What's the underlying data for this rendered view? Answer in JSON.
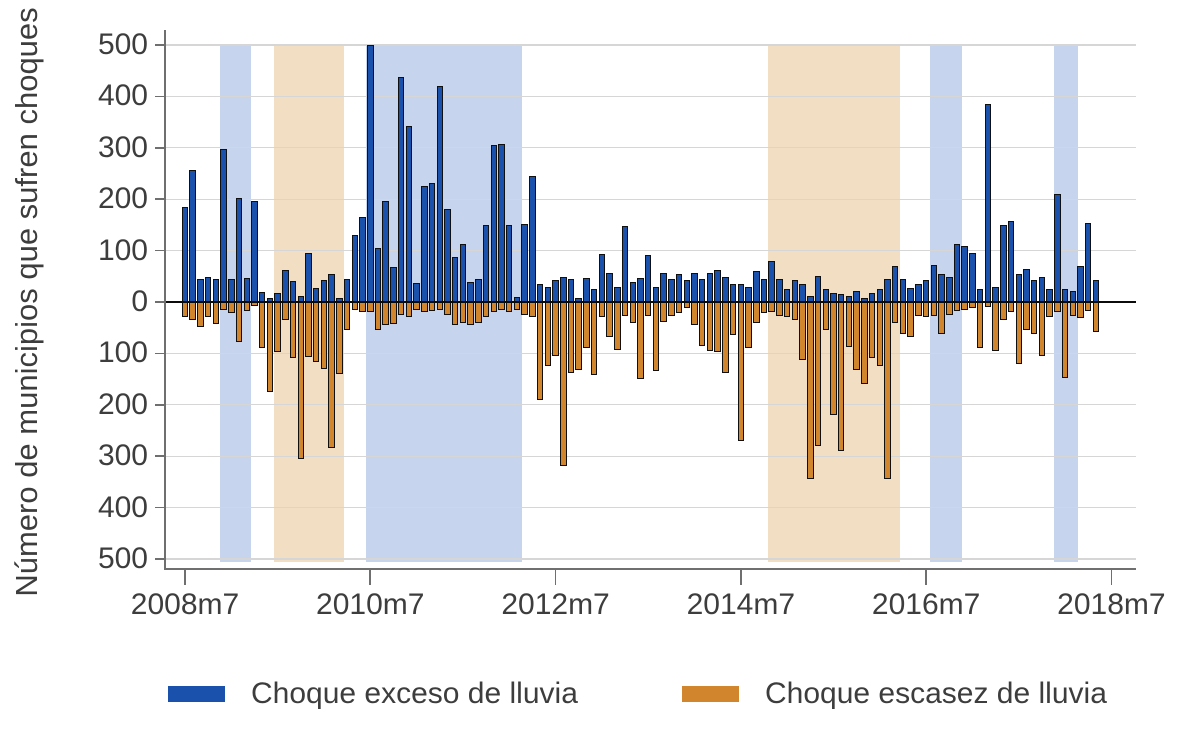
{
  "legend": {
    "items": [
      {
        "label": "Choque exceso de lluvia",
        "color": "#1a51ad"
      },
      {
        "label": "Choque escasez de lluvia",
        "color": "#d1862e"
      }
    ]
  },
  "colors": {
    "excess_bar": "#1a51ad",
    "deficit_bar": "#d1862e",
    "bar_outline": "#101010",
    "wet_band": "#c7d4ee",
    "dry_band": "#f2dfc3",
    "gridline": "#d6d6d6",
    "axis": "#6f6f6f",
    "zero_line": "#0b0b0b",
    "text": "#3d3d3d",
    "background": "#ffffff"
  },
  "chart_data": {
    "type": "bar",
    "title": "",
    "xlabel": "",
    "ylabel": "Número de municipios que sufren choques",
    "ylim": [
      -500,
      500
    ],
    "y_tick_interval": 100,
    "y_tick_labels_absolute": true,
    "grid": true,
    "legend_position": "bottom",
    "categories": [
      "2008m7",
      "2008m8",
      "2008m9",
      "2008m10",
      "2008m11",
      "2008m12",
      "2009m1",
      "2009m2",
      "2009m3",
      "2009m4",
      "2009m5",
      "2009m6",
      "2009m7",
      "2009m8",
      "2009m9",
      "2009m10",
      "2009m11",
      "2009m12",
      "2010m1",
      "2010m2",
      "2010m3",
      "2010m4",
      "2010m5",
      "2010m6",
      "2010m7",
      "2010m8",
      "2010m9",
      "2010m10",
      "2010m11",
      "2010m12",
      "2011m1",
      "2011m2",
      "2011m3",
      "2011m4",
      "2011m5",
      "2011m6",
      "2011m7",
      "2011m8",
      "2011m9",
      "2011m10",
      "2011m11",
      "2011m12",
      "2012m1",
      "2012m2",
      "2012m3",
      "2012m4",
      "2012m5",
      "2012m6",
      "2012m7",
      "2012m8",
      "2012m9",
      "2012m10",
      "2012m11",
      "2012m12",
      "2013m1",
      "2013m2",
      "2013m3",
      "2013m4",
      "2013m5",
      "2013m6",
      "2013m7",
      "2013m8",
      "2013m9",
      "2013m10",
      "2013m11",
      "2013m12",
      "2014m1",
      "2014m2",
      "2014m3",
      "2014m4",
      "2014m5",
      "2014m6",
      "2014m7",
      "2014m8",
      "2014m9",
      "2014m10",
      "2014m11",
      "2014m12",
      "2015m1",
      "2015m2",
      "2015m3",
      "2015m4",
      "2015m5",
      "2015m6",
      "2015m7",
      "2015m8",
      "2015m9",
      "2015m10",
      "2015m11",
      "2015m12",
      "2016m1",
      "2016m2",
      "2016m3",
      "2016m4",
      "2016m5",
      "2016m6",
      "2016m7",
      "2016m8",
      "2016m9",
      "2016m10",
      "2016m11",
      "2016m12",
      "2017m1",
      "2017m2",
      "2017m3",
      "2017m4",
      "2017m5",
      "2017m6",
      "2017m7",
      "2017m8",
      "2017m9",
      "2017m10",
      "2017m11",
      "2017m12",
      "2018m1",
      "2018m2",
      "2018m3",
      "2018m4",
      "2018m5"
    ],
    "series": [
      {
        "name": "Choque exceso de lluvia",
        "color": "#1a51ad",
        "values": [
          185,
          257,
          44,
          48,
          45,
          297,
          44,
          202,
          47,
          196,
          20,
          8,
          18,
          63,
          40,
          12,
          95,
          28,
          42,
          55,
          8,
          45,
          130,
          165,
          500,
          105,
          196,
          68,
          437,
          343,
          37,
          225,
          232,
          420,
          180,
          88,
          112,
          38,
          45,
          150,
          305,
          308,
          150,
          10,
          152,
          245,
          35,
          30,
          42,
          48,
          44,
          8,
          46,
          25,
          93,
          57,
          30,
          148,
          38,
          47,
          92,
          30,
          57,
          45,
          55,
          42,
          57,
          45,
          57,
          62,
          48,
          35,
          35,
          30,
          60,
          45,
          80,
          45,
          25,
          42,
          35,
          12,
          50,
          25,
          18,
          15,
          12,
          22,
          8,
          18,
          25,
          45,
          70,
          45,
          28,
          35,
          42,
          72,
          55,
          48,
          112,
          108,
          95,
          25,
          385,
          30,
          150,
          158,
          55,
          65,
          42,
          48,
          25,
          210,
          25,
          22,
          70,
          153,
          43
        ]
      },
      {
        "name": "Choque escasez de lluvia",
        "color": "#d1862e",
        "values": [
          -30,
          -35,
          -48,
          -30,
          -42,
          -15,
          -22,
          -77,
          -18,
          -8,
          -90,
          -175,
          -98,
          -35,
          -109,
          -305,
          -107,
          -117,
          -131,
          -284,
          -140,
          -55,
          -15,
          -20,
          -20,
          -55,
          -45,
          -42,
          -25,
          -30,
          -15,
          -20,
          -18,
          -15,
          -25,
          -45,
          -40,
          -45,
          -40,
          -30,
          -20,
          -15,
          -20,
          -15,
          -25,
          -30,
          -190,
          -125,
          -105,
          -320,
          -138,
          -132,
          -90,
          -142,
          -30,
          -68,
          -93,
          -28,
          -40,
          -150,
          -28,
          -135,
          -38,
          -28,
          -22,
          -12,
          -45,
          -85,
          -95,
          -98,
          -138,
          -65,
          -270,
          -90,
          -40,
          -22,
          -20,
          -28,
          -30,
          -35,
          -113,
          -345,
          -280,
          -54,
          -220,
          -290,
          -88,
          -132,
          -160,
          -108,
          -125,
          -345,
          -40,
          -62,
          -68,
          -28,
          -30,
          -28,
          -62,
          -25,
          -18,
          -15,
          -12,
          -90,
          -10,
          -95,
          -35,
          -20,
          -120,
          -55,
          -62,
          -105,
          -30,
          -20,
          -148,
          -28,
          -32,
          -17,
          -59
        ]
      }
    ],
    "x_ticks": [
      {
        "index": 0,
        "label": "2008m7"
      },
      {
        "index": 24,
        "label": "2010m7"
      },
      {
        "index": 48,
        "label": "2012m7"
      },
      {
        "index": 72,
        "label": "2014m7"
      },
      {
        "index": 96,
        "label": "2016m7"
      },
      {
        "index": 120,
        "label": "2018m7"
      }
    ],
    "shaded_bands": [
      {
        "kind": "wet",
        "color": "#c7d4ee",
        "months": "2008m12-2009m3",
        "from_index": 4.5,
        "to_index": 8.5
      },
      {
        "kind": "dry",
        "color": "#f2dfc3",
        "months": "2009m7-2010m3",
        "from_index": 11.5,
        "to_index": 20.6
      },
      {
        "kind": "wet",
        "color": "#c7d4ee",
        "months": "2010m7-2012m2",
        "from_index": 23.5,
        "to_index": 43.6
      },
      {
        "kind": "dry",
        "color": "#f2dfc3",
        "months": "2014m11-2016m3",
        "from_index": 75.5,
        "to_index": 92.6
      },
      {
        "kind": "wet",
        "color": "#c7d4ee",
        "months": "2016m8-2016m11",
        "from_index": 96.5,
        "to_index": 100.7
      },
      {
        "kind": "wet",
        "color": "#c7d4ee",
        "months": "2017m12-2018m2",
        "from_index": 112.6,
        "to_index": 115.7
      }
    ]
  }
}
